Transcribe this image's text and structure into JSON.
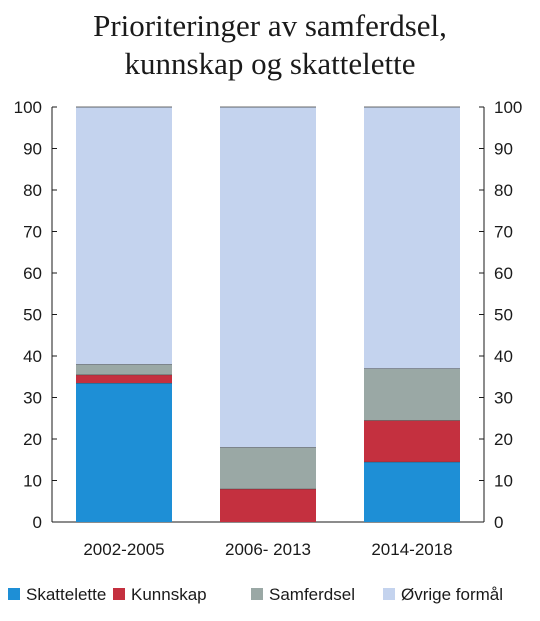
{
  "chart_data": {
    "type": "bar",
    "stacked": true,
    "title_lines": [
      "Prioriteringer av samferdsel,",
      "kunnskap og skattelette"
    ],
    "xlabel": "",
    "ylabel": "",
    "ylim": [
      0,
      100
    ],
    "yticks": [
      0,
      10,
      20,
      30,
      40,
      50,
      60,
      70,
      80,
      90,
      100
    ],
    "y_axes": [
      "left",
      "right"
    ],
    "grid": false,
    "legend_position": "bottom",
    "categories": [
      "2002-2005",
      "2006- 2013",
      "2014-2018"
    ],
    "series": [
      {
        "name": "Skattelette",
        "color": "#1e8fd6",
        "values": [
          33.5,
          0,
          14.5
        ]
      },
      {
        "name": "Kunnskap",
        "color": "#c4303f",
        "values": [
          2,
          8,
          10
        ]
      },
      {
        "name": "Samferdsel",
        "color": "#9aa8a5",
        "values": [
          2.5,
          10,
          12.5
        ]
      },
      {
        "name": "Øvrige formål",
        "color": "#c4d3ee",
        "values": [
          62,
          82,
          63
        ]
      }
    ]
  }
}
